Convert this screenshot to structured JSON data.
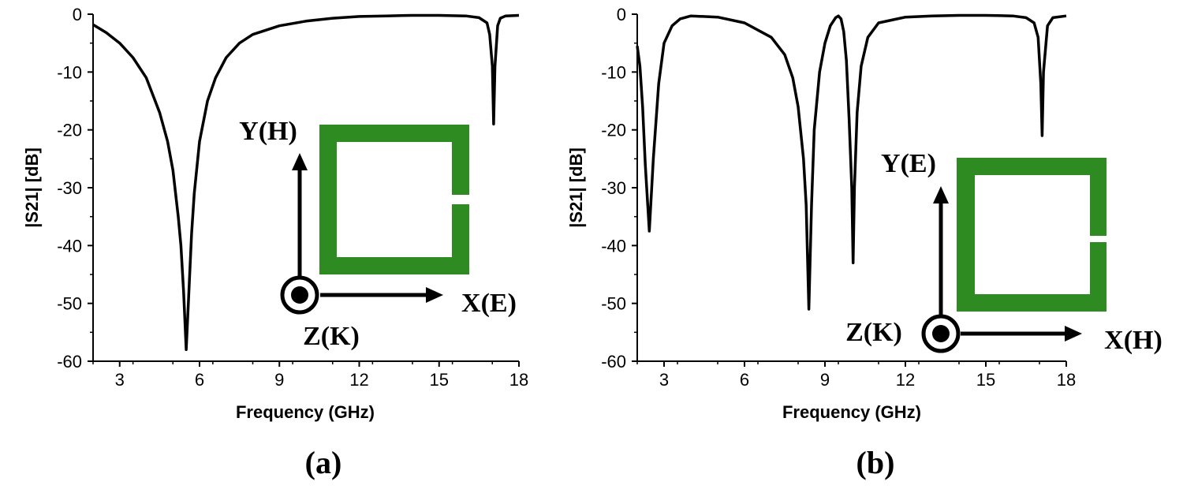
{
  "chart_data": [
    {
      "type": "line",
      "panel_label": "(a)",
      "xlabel": "Frequency (GHz)",
      "ylabel": "|S21| [dB]",
      "xlim": [
        2,
        18
      ],
      "ylim": [
        -60,
        0
      ],
      "xticks": [
        3,
        6,
        9,
        12,
        15,
        18
      ],
      "yticks": [
        0,
        -10,
        -20,
        -30,
        -40,
        -50,
        -60
      ],
      "series": [
        {
          "x": [
            2,
            2.5,
            3,
            3.5,
            4,
            4.5,
            4.8,
            5.0,
            5.2,
            5.3,
            5.4,
            5.5,
            5.6,
            5.7,
            5.8,
            6.0,
            6.3,
            6.6,
            7.0,
            7.5,
            8,
            9,
            10,
            11,
            12,
            13,
            14,
            15,
            16,
            16.5,
            16.8,
            16.9,
            17.0,
            17.05,
            17.1,
            17.2,
            17.3,
            17.5,
            18
          ],
          "y": [
            -1.8,
            -3.2,
            -5.0,
            -7.5,
            -11,
            -17,
            -22,
            -27,
            -35,
            -40,
            -48,
            -58,
            -48,
            -38,
            -31,
            -22,
            -15,
            -11,
            -7.5,
            -5,
            -3.5,
            -2,
            -1.2,
            -0.7,
            -0.4,
            -0.3,
            -0.2,
            -0.2,
            -0.3,
            -0.6,
            -1.5,
            -3.5,
            -9,
            -19,
            -9,
            -2,
            -0.7,
            -0.3,
            -0.2
          ]
        }
      ],
      "inset": {
        "axis_up": "Y(H)",
        "axis_right": "X(E)",
        "axis_out": "Z(K)",
        "ring_color": "#2e8b22",
        "gap_side": "right"
      }
    },
    {
      "type": "line",
      "panel_label": "(b)",
      "xlabel": "Frequency (GHz)",
      "ylabel": "|S21| [dB]",
      "xlim": [
        2,
        18
      ],
      "ylim": [
        -60,
        0
      ],
      "xticks": [
        3,
        6,
        9,
        12,
        15,
        18
      ],
      "yticks": [
        0,
        -10,
        -20,
        -30,
        -40,
        -50,
        -60
      ],
      "series": [
        {
          "x": [
            2,
            2.1,
            2.2,
            2.3,
            2.45,
            2.6,
            2.8,
            3.0,
            3.3,
            3.6,
            4,
            5,
            6,
            7,
            7.5,
            7.8,
            8.0,
            8.2,
            8.3,
            8.4,
            8.5,
            8.6,
            8.8,
            9.0,
            9.2,
            9.4,
            9.5,
            9.6,
            9.7,
            9.8,
            9.9,
            10.0,
            10.05,
            10.1,
            10.2,
            10.35,
            10.6,
            11,
            12,
            13,
            14,
            15,
            16,
            16.5,
            16.8,
            16.95,
            17.05,
            17.1,
            17.15,
            17.3,
            17.5,
            18
          ],
          "y": [
            -5.5,
            -9,
            -16,
            -26,
            -37.5,
            -25,
            -12,
            -5,
            -2,
            -0.8,
            -0.3,
            -0.5,
            -1.5,
            -4,
            -7,
            -11,
            -16,
            -25,
            -33,
            -51,
            -33,
            -20,
            -10,
            -5,
            -2,
            -0.6,
            -0.3,
            -0.8,
            -3,
            -8,
            -18,
            -30,
            -43,
            -30,
            -17,
            -9,
            -4,
            -1.5,
            -0.5,
            -0.3,
            -0.2,
            -0.2,
            -0.3,
            -0.6,
            -1.5,
            -4,
            -12,
            -21,
            -10,
            -2,
            -0.6,
            -0.3
          ]
        }
      ],
      "inset": {
        "axis_up": "Y(E)",
        "axis_right": "X(H)",
        "axis_out": "Z(K)",
        "ring_color": "#2e8b22",
        "gap_side": "right"
      }
    }
  ]
}
